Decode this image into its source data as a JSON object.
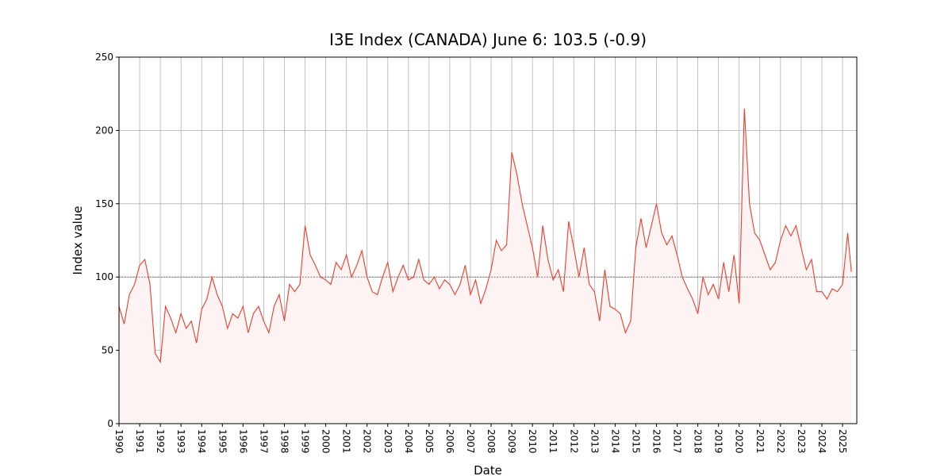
{
  "chart_data": {
    "type": "line",
    "title": "I3E Index (CANADA) June 6: 103.5 (-0.9)",
    "x_label": "Date",
    "y_label": "Index value",
    "x": [
      1990.0,
      1990.25,
      1990.5,
      1990.75,
      1991.0,
      1991.25,
      1991.5,
      1991.75,
      1992.0,
      1992.25,
      1992.5,
      1992.75,
      1993.0,
      1993.25,
      1993.5,
      1993.75,
      1994.0,
      1994.25,
      1994.5,
      1994.75,
      1995.0,
      1995.25,
      1995.5,
      1995.75,
      1996.0,
      1996.25,
      1996.5,
      1996.75,
      1997.0,
      1997.25,
      1997.5,
      1997.75,
      1998.0,
      1998.25,
      1998.5,
      1998.75,
      1999.0,
      1999.25,
      1999.5,
      1999.75,
      2000.0,
      2000.25,
      2000.5,
      2000.75,
      2001.0,
      2001.25,
      2001.5,
      2001.75,
      2002.0,
      2002.25,
      2002.5,
      2002.75,
      2003.0,
      2003.25,
      2003.5,
      2003.75,
      2004.0,
      2004.25,
      2004.5,
      2004.75,
      2005.0,
      2005.25,
      2005.5,
      2005.75,
      2006.0,
      2006.25,
      2006.5,
      2006.75,
      2007.0,
      2007.25,
      2007.5,
      2007.75,
      2008.0,
      2008.25,
      2008.5,
      2008.75,
      2009.0,
      2009.25,
      2009.5,
      2009.75,
      2010.0,
      2010.25,
      2010.5,
      2010.75,
      2011.0,
      2011.25,
      2011.5,
      2011.75,
      2012.0,
      2012.25,
      2012.5,
      2012.75,
      2013.0,
      2013.25,
      2013.5,
      2013.75,
      2014.0,
      2014.25,
      2014.5,
      2014.75,
      2015.0,
      2015.25,
      2015.5,
      2015.75,
      2016.0,
      2016.25,
      2016.5,
      2016.75,
      2017.0,
      2017.25,
      2017.5,
      2017.75,
      2018.0,
      2018.25,
      2018.5,
      2018.75,
      2019.0,
      2019.25,
      2019.5,
      2019.75,
      2020.0,
      2020.25,
      2020.5,
      2020.75,
      2021.0,
      2021.25,
      2021.5,
      2021.75,
      2022.0,
      2022.25,
      2022.5,
      2022.75,
      2023.0,
      2023.25,
      2023.5,
      2023.75,
      2024.0,
      2024.25,
      2024.5,
      2024.75,
      2025.0,
      2025.25,
      2025.43
    ],
    "series": [
      {
        "name": "I3E Index",
        "color": "#ee3b2b",
        "fill": "#fdf3f2",
        "values": [
          80,
          68,
          88,
          95,
          108,
          112,
          95,
          48,
          42,
          80,
          72,
          62,
          75,
          65,
          70,
          55,
          78,
          85,
          100,
          88,
          80,
          65,
          75,
          72,
          80,
          62,
          75,
          80,
          70,
          62,
          80,
          88,
          70,
          95,
          90,
          95,
          135,
          115,
          108,
          100,
          98,
          95,
          110,
          105,
          115,
          100,
          108,
          118,
          100,
          90,
          88,
          100,
          110,
          90,
          100,
          108,
          98,
          100,
          112,
          98,
          95,
          100,
          92,
          98,
          95,
          88,
          95,
          108,
          88,
          98,
          82,
          92,
          105,
          125,
          118,
          122,
          185,
          170,
          150,
          135,
          120,
          100,
          135,
          112,
          98,
          105,
          90,
          138,
          120,
          100,
          120,
          95,
          90,
          70,
          105,
          80,
          78,
          75,
          62,
          70,
          120,
          140,
          120,
          135,
          150,
          130,
          122,
          128,
          115,
          100,
          92,
          85,
          75,
          100,
          88,
          95,
          85,
          110,
          90,
          115,
          82,
          215,
          150,
          130,
          125,
          115,
          105,
          110,
          125,
          135,
          128,
          135,
          120,
          105,
          112,
          90,
          90,
          85,
          92,
          90,
          95,
          130,
          103.5
        ]
      }
    ],
    "reference_line": 100,
    "xlim": [
      1990,
      2025.69
    ],
    "xticks": [
      1990,
      1991,
      1992,
      1993,
      1994,
      1995,
      1996,
      1997,
      1998,
      1999,
      2000,
      2001,
      2002,
      2003,
      2004,
      2005,
      2006,
      2007,
      2008,
      2009,
      2010,
      2011,
      2012,
      2013,
      2014,
      2015,
      2016,
      2017,
      2018,
      2019,
      2020,
      2021,
      2022,
      2023,
      2024,
      2025
    ],
    "ylim": [
      0,
      250
    ],
    "yticks": [
      0,
      50,
      100,
      150,
      200,
      250
    ],
    "grid": true
  }
}
